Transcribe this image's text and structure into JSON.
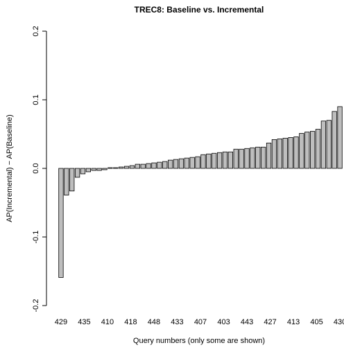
{
  "chart_data": {
    "type": "bar",
    "title": "TREC8: Baseline vs. Incremental",
    "xlabel": "Query numbers (only some are shown)",
    "ylabel": "AP(Incremental) − AP(Baseline)",
    "ylim": [
      -0.2,
      0.2
    ],
    "yticks": [
      "-0.2",
      "-0.1",
      "0.0",
      "0.1",
      "0.2"
    ],
    "shown_categories": [
      "429",
      "435",
      "410",
      "418",
      "448",
      "433",
      "407",
      "403",
      "443",
      "427",
      "413",
      "405",
      "430"
    ],
    "values": [
      -0.159,
      -0.039,
      -0.033,
      -0.013,
      -0.008,
      -0.005,
      -0.003,
      -0.003,
      -0.002,
      0.001,
      0.001,
      0.002,
      0.003,
      0.004,
      0.006,
      0.006,
      0.007,
      0.008,
      0.009,
      0.01,
      0.012,
      0.013,
      0.014,
      0.015,
      0.016,
      0.017,
      0.02,
      0.021,
      0.022,
      0.023,
      0.024,
      0.024,
      0.028,
      0.028,
      0.029,
      0.03,
      0.031,
      0.031,
      0.037,
      0.042,
      0.043,
      0.044,
      0.045,
      0.046,
      0.051,
      0.053,
      0.054,
      0.057,
      0.069,
      0.07,
      0.083,
      0.09
    ]
  }
}
